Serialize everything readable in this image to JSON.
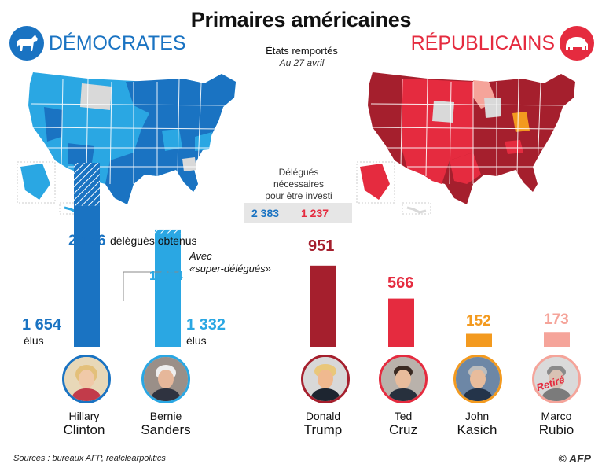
{
  "title": "Primaires américaines",
  "democrats": {
    "label": "DÉMOCRATES",
    "color": "#1a73c2",
    "color_light": "#2aa7e3",
    "icon": "donkey-icon"
  },
  "republicans": {
    "label": "RÉPUBLICAINS",
    "color": "#e52b3f",
    "color_dark": "#a51f2d",
    "icon": "elephant-icon"
  },
  "states_won": {
    "label": "États remportés",
    "date": "Au 27 avril"
  },
  "delegates_needed": {
    "label_line1": "Délégués",
    "label_line2": "nécessaires",
    "label_line3": "pour être investi",
    "democrats": "2 383",
    "republicans": "1 237"
  },
  "legend": {
    "obtained": "délégués obtenus",
    "with_super_line1": "Avec",
    "with_super_line2": "«super-délégués»",
    "elected": "élus"
  },
  "candidates": {
    "clinton": {
      "first": "Hillary",
      "last": "Clinton",
      "elected": "1 654",
      "total": "2,156",
      "elected_value": 1654,
      "total_value": 2156,
      "color": "#1a73c2"
    },
    "sanders": {
      "first": "Bernie",
      "last": "Sanders",
      "elected": "1 332",
      "total": "1,374",
      "elected_value": 1332,
      "total_value": 1374,
      "color": "#2aa7e3"
    },
    "trump": {
      "first": "Donald",
      "last": "Trump",
      "delegates": "951",
      "value": 951,
      "color": "#a51f2d"
    },
    "cruz": {
      "first": "Ted",
      "last": "Cruz",
      "delegates": "566",
      "value": 566,
      "color": "#e52b3f"
    },
    "kasich": {
      "first": "John",
      "last": "Kasich",
      "delegates": "152",
      "value": 152,
      "color": "#f39a1f"
    },
    "rubio": {
      "first": "Marco",
      "last": "Rubio",
      "delegates": "173",
      "value": 173,
      "color": "#f5a49a",
      "status": "Retiré"
    }
  },
  "source": "Sources : bureaux AFP, realclearpolitics",
  "credit": "© AFP"
}
